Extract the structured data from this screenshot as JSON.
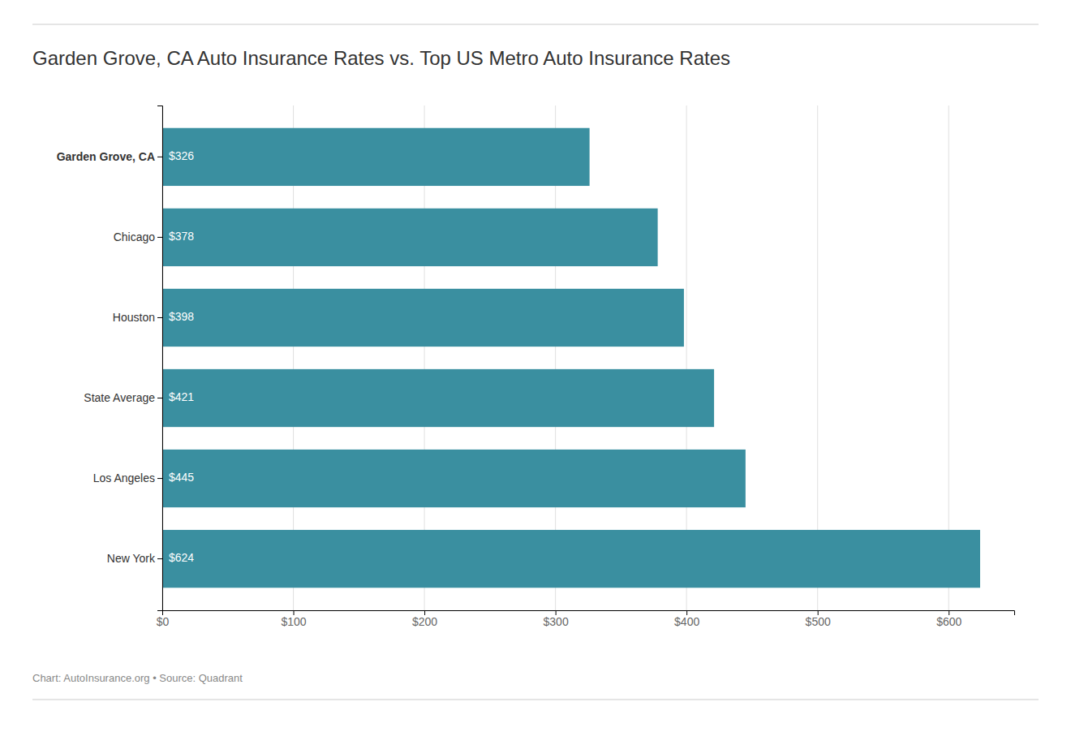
{
  "chart_data": {
    "type": "bar",
    "orientation": "horizontal",
    "title": "Garden Grove, CA Auto Insurance Rates vs. Top US Metro Auto Insurance Rates",
    "categories": [
      "Garden Grove, CA",
      "Chicago",
      "Houston",
      "State Average",
      "Los Angeles",
      "New York"
    ],
    "values": [
      326,
      378,
      398,
      421,
      445,
      624
    ],
    "value_labels": [
      "$326",
      "$378",
      "$398",
      "$421",
      "$445",
      "$624"
    ],
    "data_labels": true,
    "color": "#3a8fa0",
    "xlim": [
      0,
      650
    ],
    "xticks": [
      {
        "value": 0,
        "label": "$0"
      },
      {
        "value": 100,
        "label": "$100"
      },
      {
        "value": 200,
        "label": "$200"
      },
      {
        "value": 300,
        "label": "$300"
      },
      {
        "value": 400,
        "label": "$400"
      },
      {
        "value": 500,
        "label": "$500"
      },
      {
        "value": 600,
        "label": "$600"
      }
    ],
    "grid": true,
    "annotations": [
      "Chart: AutoInsurance.org • Source: Quadrant"
    ]
  }
}
